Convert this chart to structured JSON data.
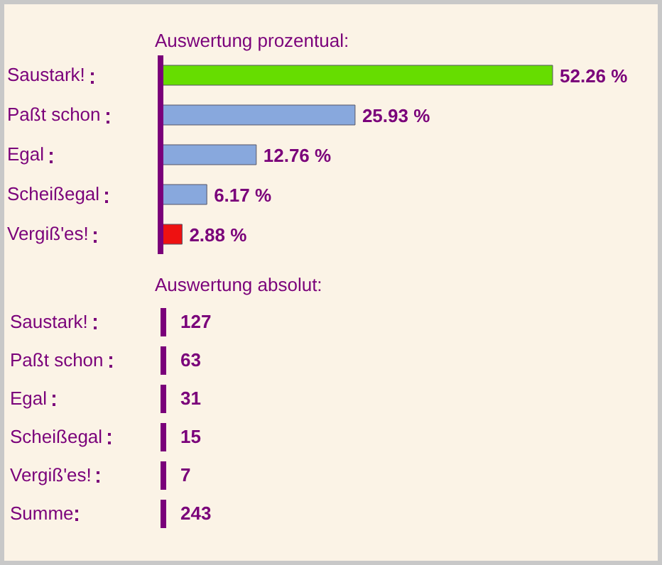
{
  "chart_data": [
    {
      "type": "bar",
      "orientation": "horizontal",
      "title": "Auswertung prozentual:",
      "categories": [
        "Saustark!",
        "Paßt schon",
        "Egal",
        "Scheißegal",
        "Vergiß'es!"
      ],
      "values": [
        52.26,
        25.93,
        12.76,
        6.17,
        2.88
      ],
      "colors": [
        "#66dd00",
        "#88a8dd",
        "#88a8dd",
        "#88a8dd",
        "#ee1111"
      ],
      "value_labels": [
        "52.26 %",
        "25.93 %",
        "12.76 %",
        "6.17 %",
        "2.88 %"
      ]
    },
    {
      "type": "other",
      "title": "Auswertung absolut:",
      "categories": [
        "Saustark!",
        "Paßt schon",
        "Egal",
        "Scheißegal",
        "Vergiß'es!",
        "Summe"
      ],
      "values": [
        127,
        63,
        31,
        15,
        7,
        243
      ],
      "data_labels": true
    }
  ]
}
